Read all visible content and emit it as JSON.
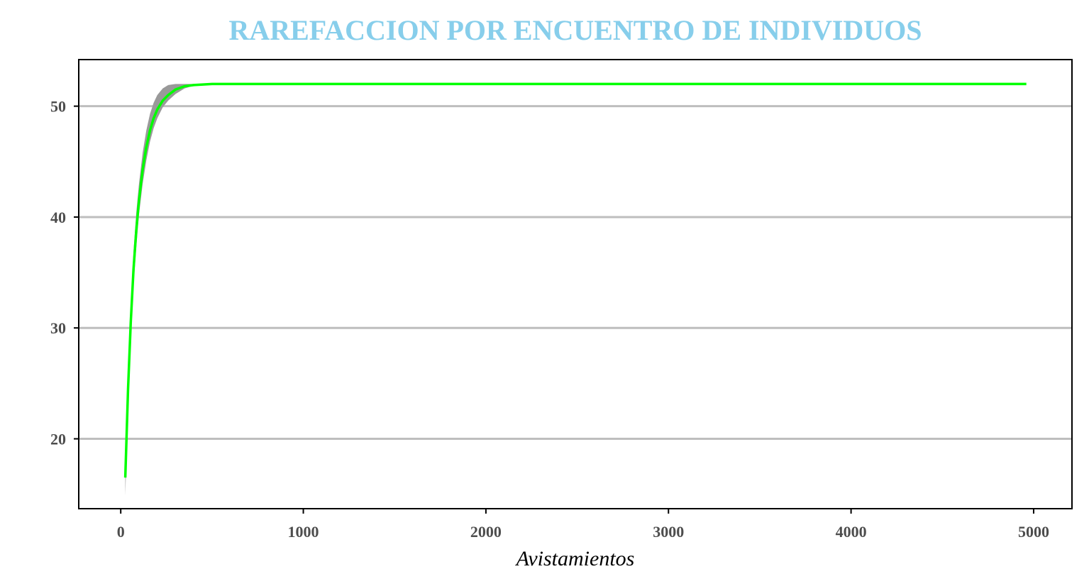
{
  "colors": {
    "title": "#87ceeb",
    "curve": "#00ff00",
    "band": "#999999",
    "grid": "#bebebe",
    "axis": "#000000"
  },
  "chart_data": {
    "type": "line",
    "title": "RAREFACCION POR ENCUENTRO DE INDIVIDUOS",
    "xlabel": "Avistamientos",
    "ylabel": "",
    "xlim": [
      -230,
      5210
    ],
    "ylim": [
      13.7,
      54.2
    ],
    "x_ticks": [
      0,
      1000,
      2000,
      3000,
      4000,
      5000
    ],
    "y_ticks": [
      20,
      30,
      40,
      50
    ],
    "grid": "horizontal major lines",
    "series": [
      {
        "type": "line",
        "x": [
          25,
          40,
          55,
          70,
          85,
          100,
          120,
          140,
          160,
          180,
          200,
          230,
          260,
          300,
          350,
          400,
          500,
          600,
          800,
          1000,
          2000,
          3000,
          4000,
          4960
        ],
        "y": [
          16.5,
          24.5,
          30.5,
          35.3,
          38.8,
          41.5,
          44.3,
          46.3,
          47.8,
          48.9,
          49.7,
          50.5,
          51.0,
          51.5,
          51.8,
          51.9,
          52.0,
          52.0,
          52.0,
          52.0,
          52.0,
          52.0,
          52.0,
          52.0
        ]
      },
      {
        "type": "area",
        "x": [
          25,
          40,
          55,
          70,
          85,
          100,
          120,
          140,
          160,
          180,
          200,
          230,
          260,
          300,
          350,
          400,
          500
        ],
        "y_low": [
          14.9,
          23.2,
          29.0,
          33.8,
          37.3,
          40.2,
          43.0,
          45.1,
          46.8,
          48.0,
          48.9,
          49.9,
          50.5,
          51.1,
          51.6,
          51.85,
          52.0
        ],
        "y_high": [
          17.8,
          26.0,
          32.0,
          36.9,
          40.4,
          43.0,
          45.8,
          47.8,
          49.3,
          50.3,
          51.0,
          51.6,
          51.9,
          52.0,
          52.0,
          52.0,
          52.0
        ]
      }
    ]
  }
}
